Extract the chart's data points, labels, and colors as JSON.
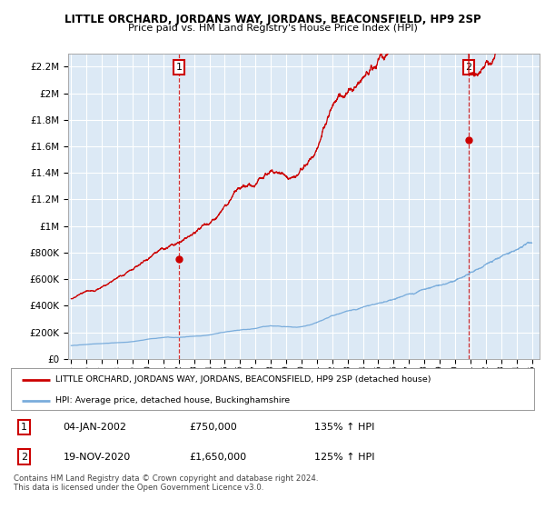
{
  "title": "LITTLE ORCHARD, JORDANS WAY, JORDANS, BEACONSFIELD, HP9 2SP",
  "subtitle": "Price paid vs. HM Land Registry's House Price Index (HPI)",
  "legend_red": "LITTLE ORCHARD, JORDANS WAY, JORDANS, BEACONSFIELD, HP9 2SP (detached house)",
  "legend_blue": "HPI: Average price, detached house, Buckinghamshire",
  "table_rows": [
    {
      "num": "1",
      "date": "04-JAN-2002",
      "price": "£750,000",
      "hpi": "135% ↑ HPI"
    },
    {
      "num": "2",
      "date": "19-NOV-2020",
      "price": "£1,650,000",
      "hpi": "125% ↑ HPI"
    }
  ],
  "footnote": "Contains HM Land Registry data © Crown copyright and database right 2024.\nThis data is licensed under the Open Government Licence v3.0.",
  "sale1_year": 2002.01,
  "sale1_price": 750000,
  "sale2_year": 2020.89,
  "sale2_price": 1650000,
  "ylim": [
    0,
    2300000
  ],
  "xlim_start": 1994.8,
  "xlim_end": 2025.5,
  "background_color": "#ffffff",
  "plot_bg_color": "#dce9f5",
  "grid_color": "#ffffff",
  "red_color": "#cc0000",
  "blue_color": "#7aaddc"
}
